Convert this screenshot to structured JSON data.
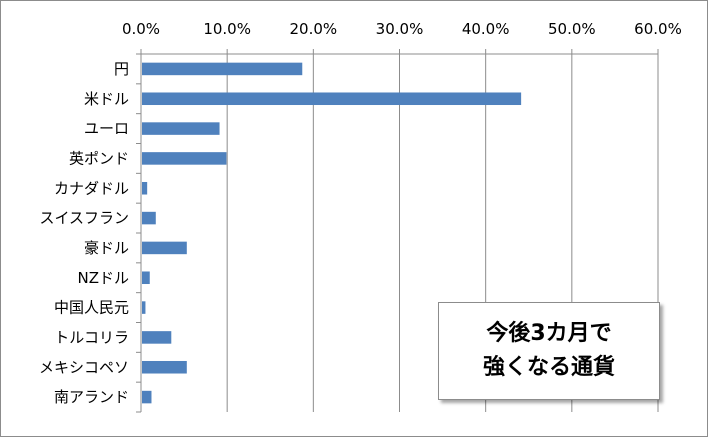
{
  "chart_data": {
    "type": "bar",
    "orientation": "horizontal",
    "title_lines": [
      "今後3カ月で",
      "強くなる通貨"
    ],
    "xlabel": "",
    "ylabel": "",
    "xlim": [
      0,
      60
    ],
    "x_ticks": [
      "0.0%",
      "10.0%",
      "20.0%",
      "30.0%",
      "40.0%",
      "50.0%",
      "60.0%"
    ],
    "categories": [
      "円",
      "米ドル",
      "ユーロ",
      "英ポンド",
      "カナダドル",
      "スイスフラン",
      "豪ドル",
      "NZドル",
      "中国人民元",
      "トルコリラ",
      "メキシコペソ",
      "南アランド"
    ],
    "values": [
      18.6,
      44.0,
      9.0,
      9.8,
      0.6,
      1.6,
      5.2,
      0.9,
      0.4,
      3.4,
      5.2,
      1.1
    ],
    "value_unit": "%",
    "bar_color": "#4f81bd",
    "grid": true,
    "grid_color": "#8c8c8c",
    "legend": "none",
    "x_axis_position": "top"
  }
}
